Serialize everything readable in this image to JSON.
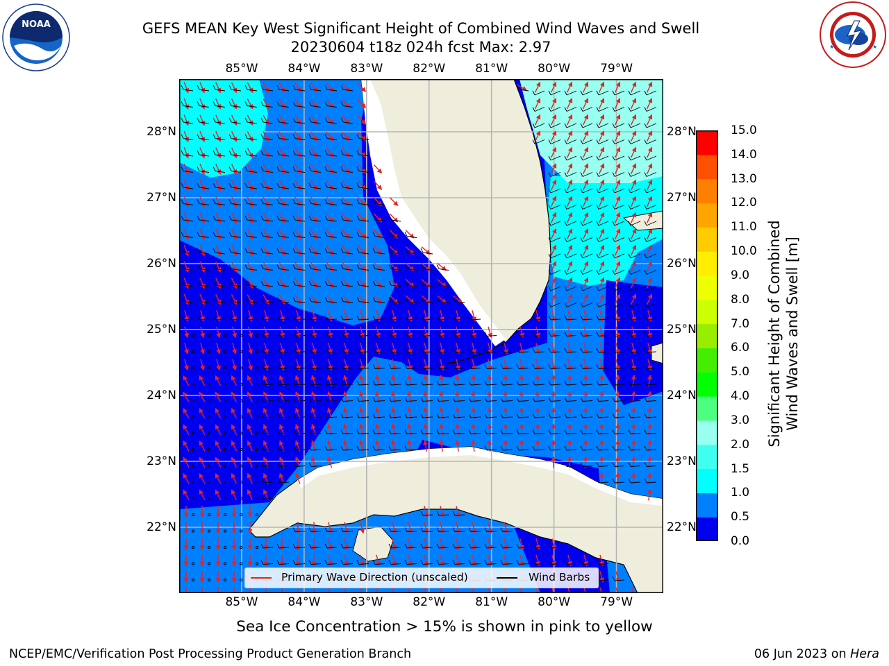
{
  "title": {
    "line1": "GEFS MEAN Key West Significant Height of Combined Wind Waves and Swell",
    "line2": "20230604 t18z 024h fcst   Max: 2.97"
  },
  "logos": {
    "left": {
      "name": "noaa-logo",
      "text": "NOAA",
      "ring_text": "NATIONAL OCEANIC AND ATMOSPHERIC ADMINISTRATION · U.S. DEPARTMENT OF COMMERCE"
    },
    "right": {
      "name": "nws-logo",
      "ring_text": "NATIONAL WEATHER SERVICE"
    }
  },
  "map": {
    "lon_labels": [
      "85°W",
      "84°W",
      "83°W",
      "82°W",
      "81°W",
      "80°W",
      "79°W"
    ],
    "lat_labels_left": [
      "28°N",
      "27°N",
      "26°N",
      "25°N",
      "24°N",
      "23°N",
      "22°N"
    ],
    "lat_labels_right": [
      "28°N",
      "27°N",
      "26°N",
      "25°N",
      "24°N",
      "23°N",
      "22°N"
    ],
    "extent": {
      "lon_min": -86.0,
      "lon_max": -78.25,
      "lat_min": 21.0,
      "lat_max": 28.8
    },
    "land_color": "#efeedd",
    "grid_color": "#b5b5b5",
    "legend": {
      "wave_label": "Primary Wave Direction (unscaled)",
      "wave_color": "#e8221f",
      "wind_label": "Wind Barbs",
      "wind_color": "#000000"
    }
  },
  "colorbar": {
    "ticks": [
      "15.0",
      "14.0",
      "13.0",
      "12.0",
      "11.0",
      "10.0",
      "9.0",
      "8.0",
      "7.0",
      "6.0",
      "5.0",
      "4.0",
      "3.0",
      "2.0",
      "1.5",
      "1.0",
      "0.5",
      "0.0"
    ],
    "colors": [
      "#0000f0",
      "#0080ff",
      "#00ffff",
      "#3ffff0",
      "#99fff0",
      "#4dff80",
      "#00ff00",
      "#44ee00",
      "#99ee00",
      "#ccff00",
      "#eeff00",
      "#ffee00",
      "#ffcc00",
      "#ffa500",
      "#ff7f00",
      "#ff4f00",
      "#ff0000"
    ],
    "label": "Significant Height of Combined Wind Waves and Swell [m]",
    "label_line1": "Significant Height of Combined",
    "label_line2": "Wind Waves and Swell [m]"
  },
  "footer": {
    "note": "Sea Ice Concentration > 15% is shown in pink to yellow",
    "producer": "NCEP/EMC/Verification Post Processing Product Generation Branch",
    "date": "06 Jun 2023 on",
    "host": "Hera"
  }
}
